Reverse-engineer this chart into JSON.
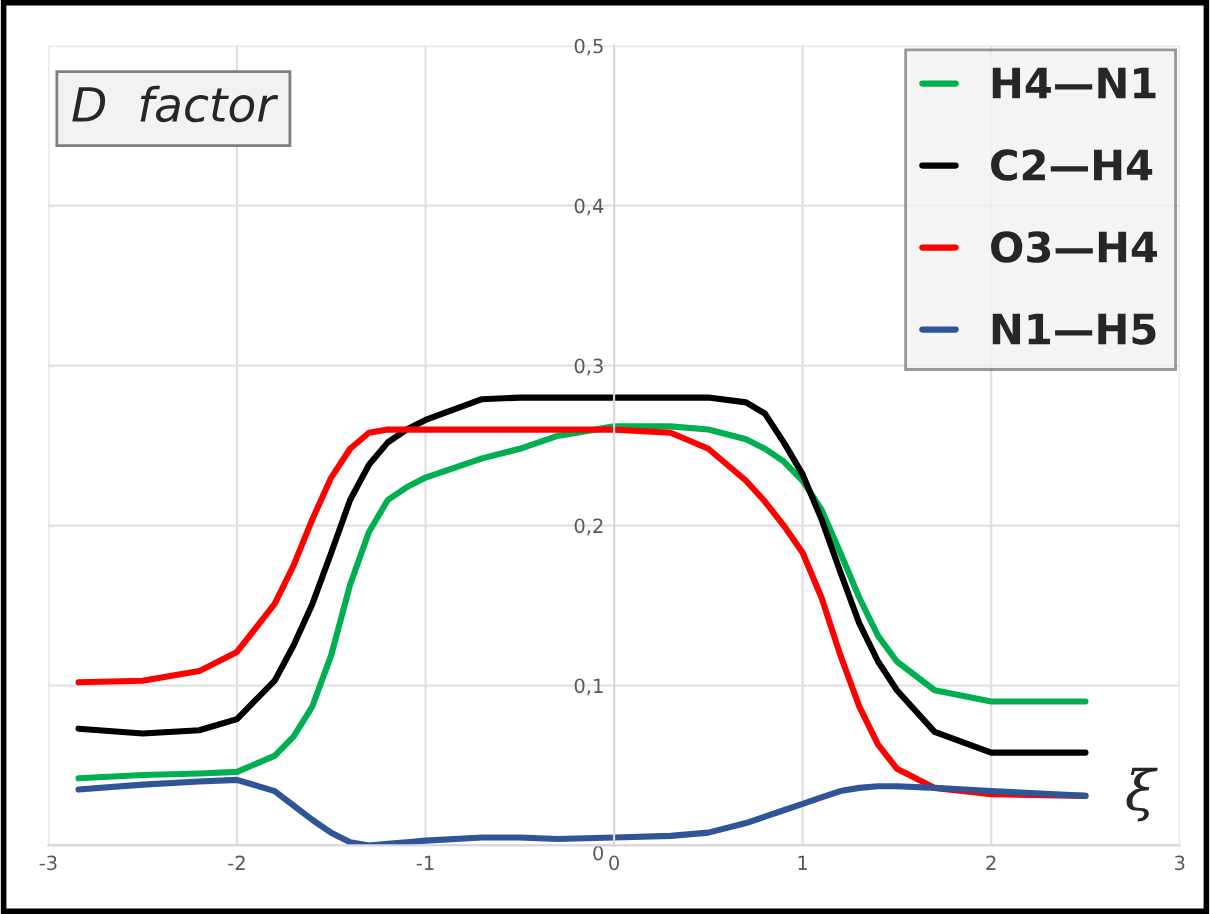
{
  "chart_data": {
    "type": "line",
    "title": "D  factor",
    "xlabel": "ξ",
    "xlim": [
      -3,
      3
    ],
    "ylim": [
      0,
      0.5
    ],
    "xticks": [
      {
        "value": -3,
        "label": "-3"
      },
      {
        "value": -2,
        "label": "-2"
      },
      {
        "value": -1,
        "label": "-1"
      },
      0,
      1,
      2,
      3
    ],
    "yticks": [
      0,
      {
        "value": 0.1,
        "label": "0,1"
      },
      {
        "value": 0.2,
        "label": "0,2"
      },
      {
        "value": 0.3,
        "label": "0,3"
      },
      {
        "value": 0.4,
        "label": "0,4"
      },
      {
        "value": 0.5,
        "label": "0,5"
      }
    ],
    "grid": true,
    "legend": "top right",
    "marker": "none",
    "line_style": "solid",
    "x": [
      -2.84,
      -2.5,
      -2.2,
      -2,
      -1.8,
      -1.7,
      -1.6,
      -1.5,
      -1.4,
      -1.3,
      -1.2,
      -1.1,
      -1,
      -0.7,
      -0.5,
      -0.3,
      0,
      0.3,
      0.5,
      0.7,
      0.8,
      0.9,
      1,
      1.1,
      1.2,
      1.3,
      1.4,
      1.5,
      1.7,
      2,
      2.5
    ],
    "series": [
      {
        "name": "H4—N1",
        "color": "#00b050",
        "values": [
          0.042,
          0.044,
          0.045,
          0.046,
          0.056,
          0.068,
          0.087,
          0.119,
          0.163,
          0.196,
          0.216,
          0.224,
          0.23,
          0.242,
          0.248,
          0.256,
          0.262,
          0.262,
          0.26,
          0.254,
          0.248,
          0.24,
          0.228,
          0.21,
          0.183,
          0.155,
          0.131,
          0.115,
          0.097,
          0.09,
          0.09
        ]
      },
      {
        "name": "C2—H4",
        "color": "#000000",
        "values": [
          0.073,
          0.07,
          0.072,
          0.079,
          0.103,
          0.125,
          0.151,
          0.183,
          0.216,
          0.238,
          0.252,
          0.26,
          0.266,
          0.279,
          0.28,
          0.28,
          0.28,
          0.28,
          0.28,
          0.277,
          0.27,
          0.252,
          0.232,
          0.204,
          0.171,
          0.139,
          0.115,
          0.097,
          0.071,
          0.058,
          0.058
        ]
      },
      {
        "name": "O3—H4",
        "color": "#ff0000",
        "values": [
          0.102,
          0.103,
          0.109,
          0.121,
          0.151,
          0.175,
          0.204,
          0.23,
          0.248,
          0.258,
          0.26,
          0.26,
          0.26,
          0.26,
          0.26,
          0.26,
          0.26,
          0.258,
          0.248,
          0.228,
          0.215,
          0.2,
          0.183,
          0.155,
          0.119,
          0.087,
          0.063,
          0.048,
          0.036,
          0.032,
          0.031
        ]
      },
      {
        "name": "N1—H5",
        "color": "#2f5597",
        "values": [
          0.035,
          0.038,
          0.04,
          0.041,
          0.034,
          0.025,
          0.016,
          0.008,
          0.002,
          0.0,
          0.001,
          0.002,
          0.003,
          0.005,
          0.005,
          0.004,
          0.005,
          0.006,
          0.008,
          0.014,
          0.018,
          0.022,
          0.026,
          0.03,
          0.034,
          0.036,
          0.037,
          0.037,
          0.036,
          0.034,
          0.031
        ]
      }
    ]
  }
}
